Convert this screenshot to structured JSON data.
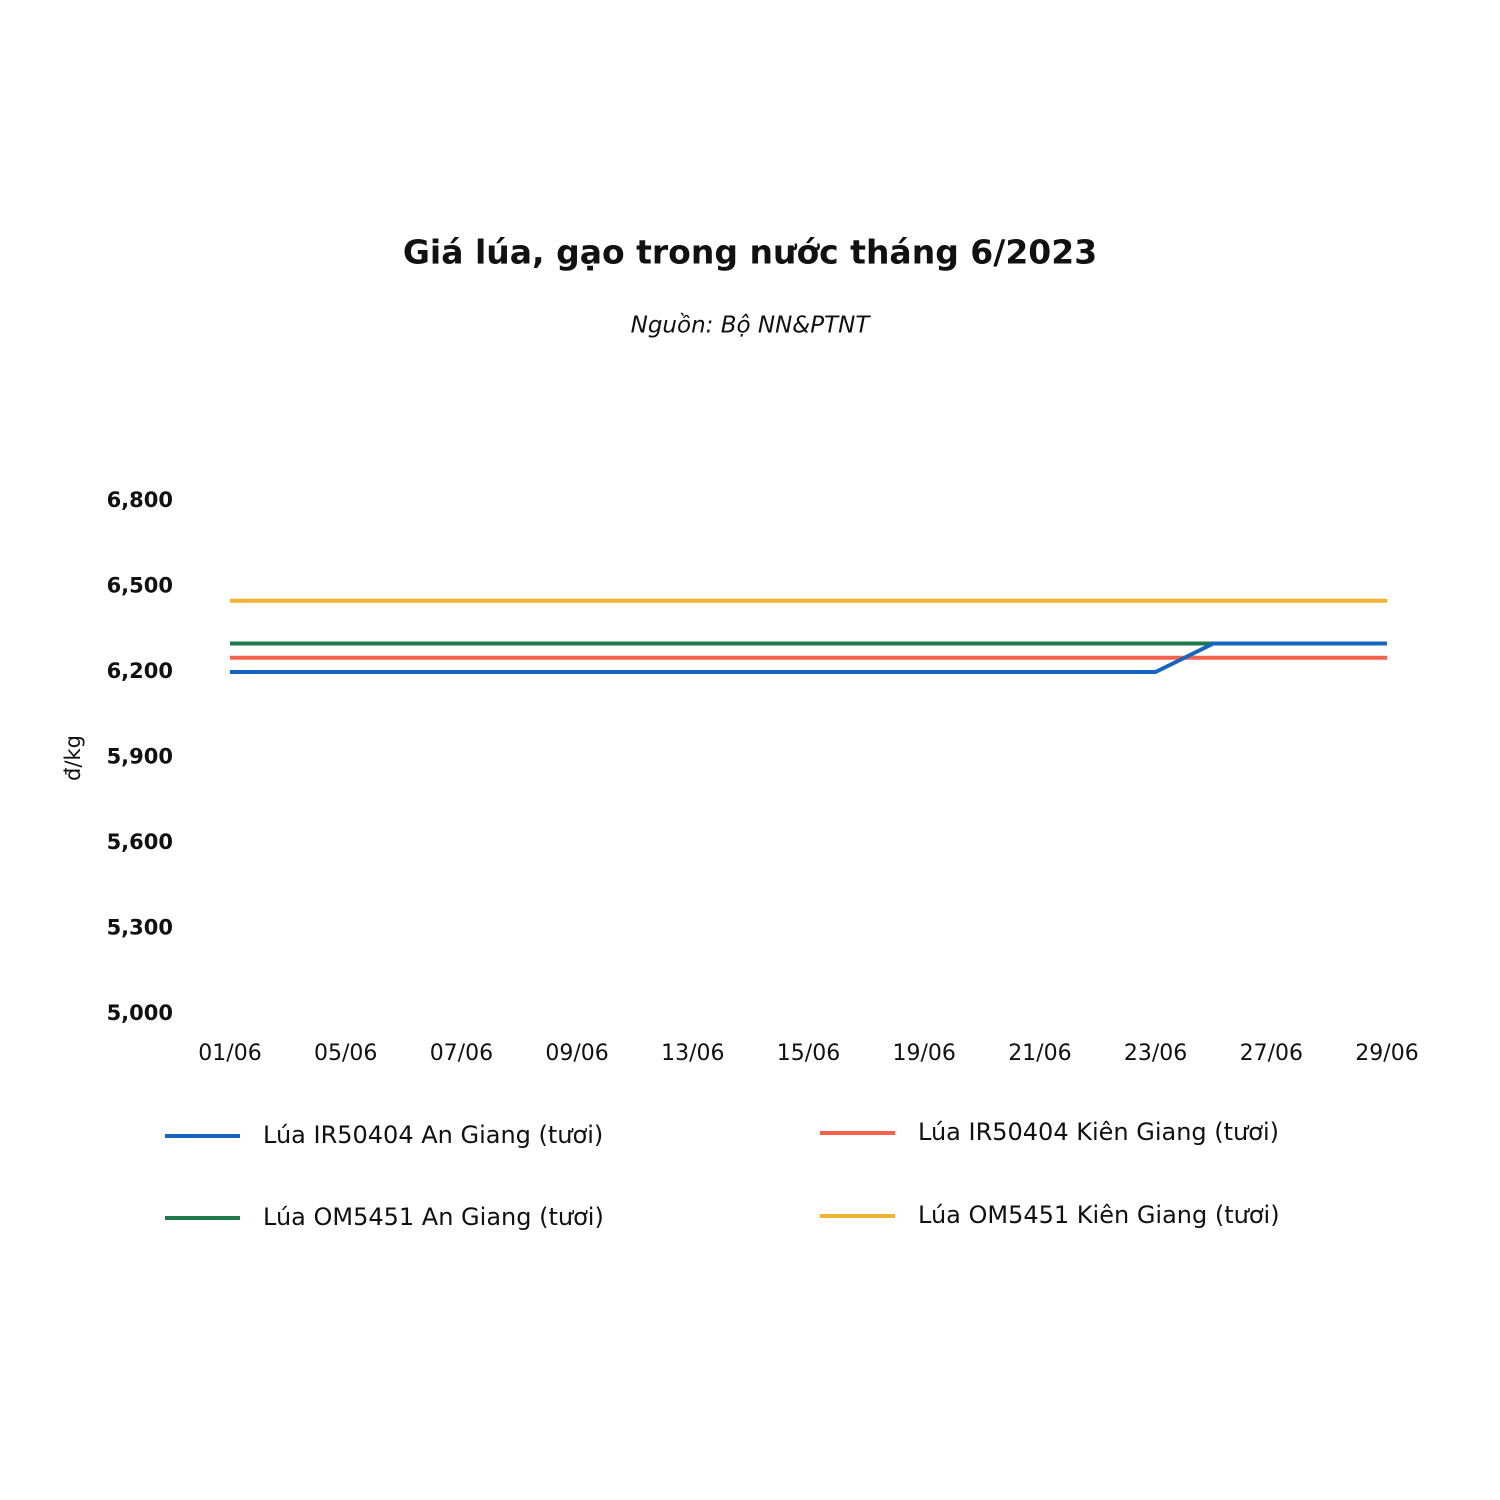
{
  "chart_data": {
    "type": "line",
    "title": "Giá lúa, gạo trong nước tháng 6/2023",
    "subtitle": "Nguồn: Bộ NN&PTNT",
    "ylabel": "đ/kg",
    "categories": [
      "01/06",
      null,
      "05/06",
      null,
      "07/06",
      null,
      "09/06",
      null,
      "13/06",
      null,
      "15/06",
      null,
      "19/06",
      null,
      "21/06",
      null,
      "23/06",
      null,
      "27/06",
      null,
      "29/06"
    ],
    "series": [
      {
        "name": "Lúa IR50404 An Giang (tươi)",
        "color": "#1565c0",
        "values": [
          6200,
          6200,
          6200,
          6200,
          6200,
          6200,
          6200,
          6200,
          6200,
          6200,
          6200,
          6200,
          6200,
          6200,
          6200,
          6200,
          6200,
          6300,
          6300,
          6300,
          6300
        ]
      },
      {
        "name": "Lúa IR50404 Kiên Giang (tươi)",
        "color": "#f4624a",
        "values": [
          6250,
          6250,
          6250,
          6250,
          6250,
          6250,
          6250,
          6250,
          6250,
          6250,
          6250,
          6250,
          6250,
          6250,
          6250,
          6250,
          6250,
          6250,
          6250,
          6250,
          6250
        ]
      },
      {
        "name": "Lúa OM5451 An Giang (tươi)",
        "color": "#1e7a4c",
        "values": [
          6300,
          6300,
          6300,
          6300,
          6300,
          6300,
          6300,
          6300,
          6300,
          6300,
          6300,
          6300,
          6300,
          6300,
          6300,
          6300,
          6300,
          6300,
          6300,
          6300,
          6300
        ]
      },
      {
        "name": "Lúa OM5451 Kiên Giang (tươi)",
        "color": "#f2b233",
        "values": [
          6450,
          6450,
          6450,
          6450,
          6450,
          6450,
          6450,
          6450,
          6450,
          6450,
          6450,
          6450,
          6450,
          6450,
          6450,
          6450,
          6450,
          6450,
          6450,
          6450,
          6450
        ]
      }
    ],
    "ylim": [
      5000,
      6800
    ],
    "yticks": [
      {
        "value": 5000,
        "label": "5,000"
      },
      {
        "value": 5300,
        "label": "5,300"
      },
      {
        "value": 5600,
        "label": "5,600"
      },
      {
        "value": 5900,
        "label": "5,900"
      },
      {
        "value": 6200,
        "label": "6,200"
      },
      {
        "value": 6500,
        "label": "6,500"
      },
      {
        "value": 6800,
        "label": "6,800"
      }
    ],
    "grid": false
  }
}
